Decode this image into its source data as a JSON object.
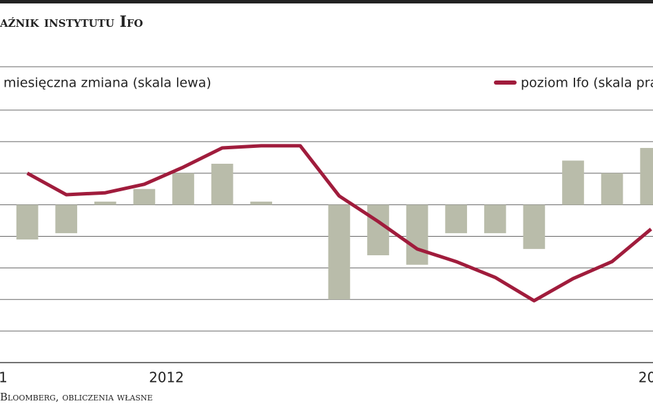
{
  "chart_data": {
    "type": "bar-line",
    "title": "aźnik instytutu Ifo",
    "source": "Bloomberg, obliczenia własne",
    "x": [
      0,
      1,
      2,
      3,
      4,
      5,
      6,
      7,
      8,
      9,
      10,
      11,
      12,
      13,
      14,
      15,
      16
    ],
    "xlim": [
      -0.7,
      16.05
    ],
    "xticks": [
      {
        "value": -0.62,
        "label": "1"
      },
      {
        "value": 3.57,
        "label": "2012"
      },
      {
        "value": 15.9,
        "label": "20"
      }
    ],
    "ylim": [
      -5,
      3
    ],
    "y2lim": [
      0,
      8
    ],
    "grid": true,
    "series": [
      {
        "name": "miesięczna zmiana (skala lewa)",
        "color": "#b9bcaa",
        "type": "bar",
        "values": [
          -1.1,
          -0.9,
          0.1,
          0.5,
          1.0,
          1.3,
          0.1,
          0,
          -3.0,
          -1.6,
          -1.9,
          -0.9,
          -0.9,
          -1.4,
          1.4,
          1.0,
          1.8
        ]
      },
      {
        "name": "poziom Ifo (skala pra",
        "color": "#a01c3c",
        "type": "line",
        "axis": "y2",
        "values": [
          6.0,
          5.32,
          5.38,
          5.65,
          6.19,
          6.8,
          6.87,
          6.87,
          5.28,
          4.47,
          3.6,
          3.2,
          2.7,
          1.96,
          2.66,
          3.2,
          4.23
        ]
      }
    ]
  }
}
